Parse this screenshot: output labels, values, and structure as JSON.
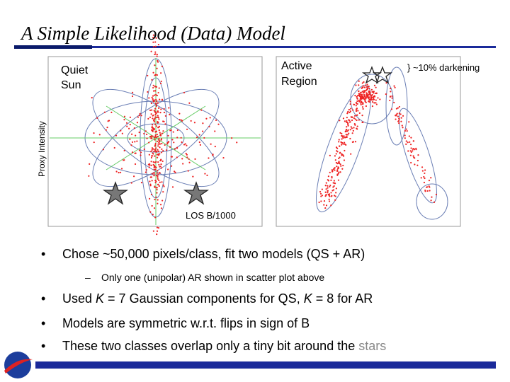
{
  "header": {
    "title": "A Simple Likelihood (Data) Model"
  },
  "figure": {
    "left_label": [
      "Quiet",
      "Sun"
    ],
    "right_label": [
      "Active",
      "Region"
    ],
    "darkening": "} ~10% darkening",
    "y_label": "Proxy Intensity",
    "x_label": "LOS B/1000"
  },
  "bullets": [
    {
      "parts": [
        "Chose ~50,000 pixels/class, fit two models (QS + AR)"
      ]
    },
    {
      "parts": [
        "Only one (unipolar) AR shown in scatter plot above"
      ],
      "level": 2
    },
    {
      "parts": [
        "Used ",
        "K",
        " = 7 Gaussian components for QS, ",
        "K",
        " = 8 for AR"
      ]
    },
    {
      "parts": [
        "Models are symmetric w.r.t. flips in sign of B"
      ]
    },
    {
      "parts": [
        "These two classes overlap only a tiny bit around the ",
        "stars"
      ]
    }
  ]
}
